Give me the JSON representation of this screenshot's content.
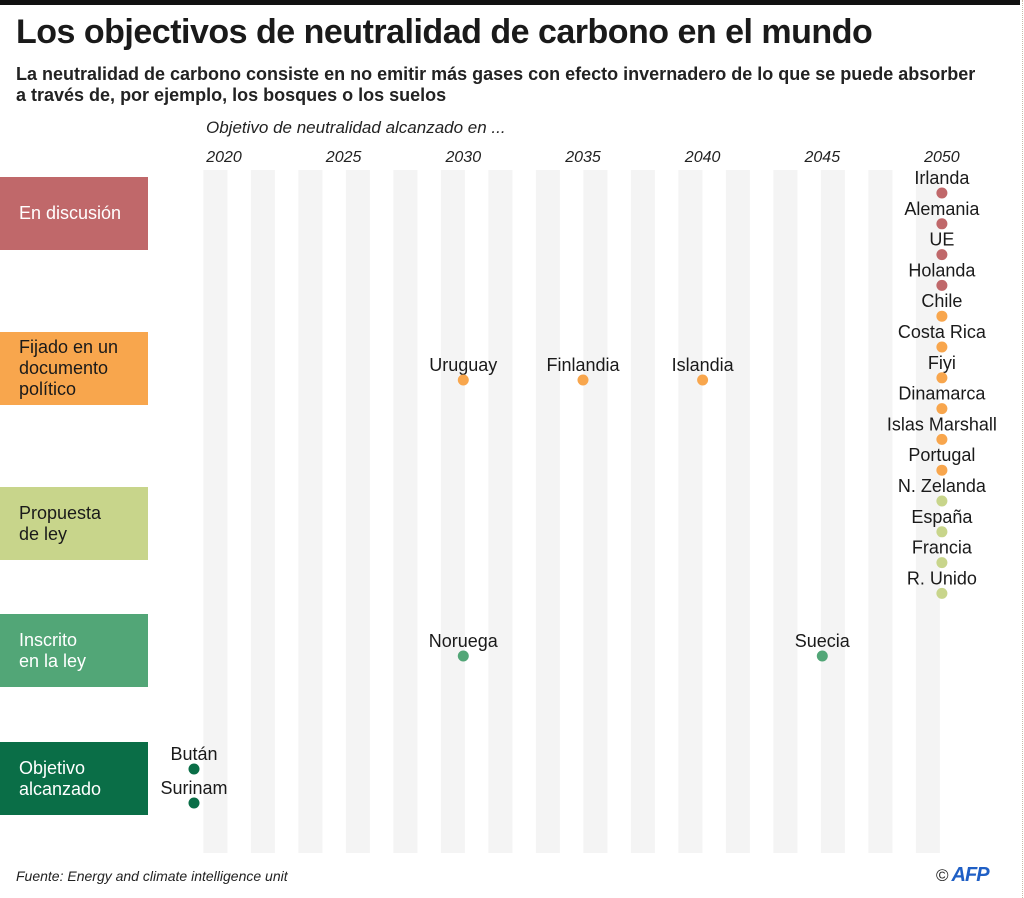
{
  "header": {
    "title": "Los objectivos de neutralidad de carbono en el mundo",
    "subtitle": "La neutralidad de carbono consiste en no emitir más gases con efecto invernadero de lo que se puede absorber a través de, por ejemplo, los bosques o los suelos"
  },
  "footer": {
    "source": "Fuente: Energy and climate intelligence unit",
    "copyright": "©",
    "logo": "AFP"
  },
  "chart_data": {
    "type": "scatter",
    "title": "Los objectivos de neutralidad de carbono en el mundo",
    "xlabel": "Objetivo de neutralidad alcanzado en ...",
    "ylabel": "",
    "x_ticks": [
      2020,
      2025,
      2030,
      2035,
      2040,
      2045,
      2050
    ],
    "xlim": [
      2018,
      2052
    ],
    "grid": "alternating vertical bands",
    "categories": [
      {
        "key": "discusion",
        "label": "En discusión",
        "color": "#c0686a",
        "text_color": "#ffffff"
      },
      {
        "key": "documento",
        "label": "Fijado en un documento político",
        "label_lines": [
          "Fijado en un",
          "documento",
          "político"
        ],
        "color": "#f8a64d",
        "text_color": "#1a1a1a"
      },
      {
        "key": "propuesta",
        "label": "Propuesta de ley",
        "label_lines": [
          "Propuesta",
          "de ley"
        ],
        "color": "#c8d58b",
        "text_color": "#1a1a1a"
      },
      {
        "key": "inscrito",
        "label": "Inscrito en la ley",
        "label_lines": [
          "Inscrito",
          "en la ley"
        ],
        "color": "#52a677",
        "text_color": "#ffffff"
      },
      {
        "key": "alcanzado",
        "label": "Objetivo alcanzado",
        "label_lines": [
          "Objetivo",
          "alcanzado"
        ],
        "color": "#0a6e47",
        "text_color": "#ffffff"
      }
    ],
    "points": [
      {
        "country": "Irlanda",
        "year": 2050,
        "category": "discusion"
      },
      {
        "country": "Alemania",
        "year": 2050,
        "category": "discusion"
      },
      {
        "country": "UE",
        "year": 2050,
        "category": "discusion"
      },
      {
        "country": "Holanda",
        "year": 2050,
        "category": "discusion"
      },
      {
        "country": "Chile",
        "year": 2050,
        "category": "documento"
      },
      {
        "country": "Costa Rica",
        "year": 2050,
        "category": "documento"
      },
      {
        "country": "Fiyi",
        "year": 2050,
        "category": "documento"
      },
      {
        "country": "Dinamarca",
        "year": 2050,
        "category": "documento"
      },
      {
        "country": "Islas Marshall",
        "year": 2050,
        "category": "documento"
      },
      {
        "country": "Portugal",
        "year": 2050,
        "category": "documento"
      },
      {
        "country": "Uruguay",
        "year": 2030,
        "category": "documento"
      },
      {
        "country": "Finlandia",
        "year": 2035,
        "category": "documento"
      },
      {
        "country": "Islandia",
        "year": 2040,
        "category": "documento"
      },
      {
        "country": "N. Zelanda",
        "year": 2050,
        "category": "propuesta"
      },
      {
        "country": "España",
        "year": 2050,
        "category": "propuesta"
      },
      {
        "country": "Francia",
        "year": 2050,
        "category": "propuesta"
      },
      {
        "country": "R. Unido",
        "year": 2050,
        "category": "propuesta"
      },
      {
        "country": "Noruega",
        "year": 2030,
        "category": "inscrito"
      },
      {
        "country": "Suecia",
        "year": 2045,
        "category": "inscrito"
      },
      {
        "country": "Bután",
        "year": 2019,
        "category": "alcanzado"
      },
      {
        "country": "Surinam",
        "year": 2019,
        "category": "alcanzado"
      }
    ]
  }
}
